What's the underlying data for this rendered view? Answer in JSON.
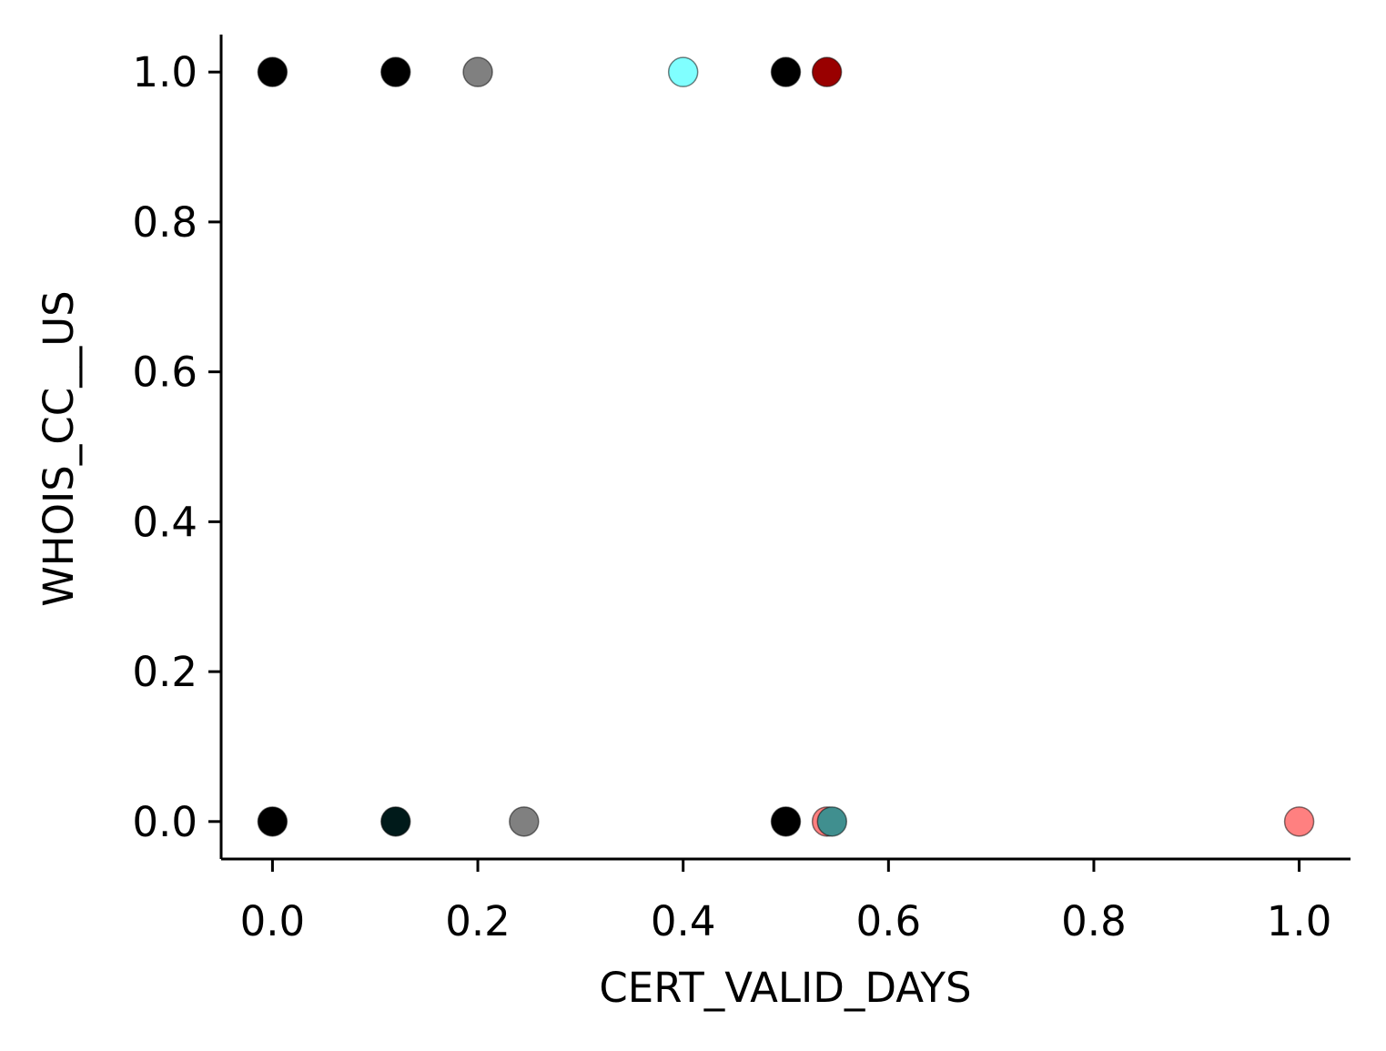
{
  "chart_data": {
    "type": "scatter",
    "title": "",
    "xlabel": "CERT_VALID_DAYS",
    "ylabel": "WHOIS_CC__US",
    "xlim": [
      -0.05,
      1.05
    ],
    "ylim": [
      -0.05,
      1.05
    ],
    "x_ticks": [
      0.0,
      0.2,
      0.4,
      0.6,
      0.8,
      1.0
    ],
    "y_ticks": [
      0.0,
      0.2,
      0.4,
      0.6,
      0.8,
      1.0
    ],
    "x_tick_labels": [
      "0.0",
      "0.2",
      "0.4",
      "0.6",
      "0.8",
      "1.0"
    ],
    "y_tick_labels": [
      "0.0",
      "0.2",
      "0.4",
      "0.6",
      "0.8",
      "1.0"
    ],
    "grid": false,
    "legend": "none",
    "points": [
      {
        "x": 0.0,
        "y": 1.0,
        "color": "#000000"
      },
      {
        "x": 0.12,
        "y": 1.0,
        "color": "#000000"
      },
      {
        "x": 0.2,
        "y": 1.0,
        "color": "#808080"
      },
      {
        "x": 0.4,
        "y": 1.0,
        "color": "#80ffff"
      },
      {
        "x": 0.5,
        "y": 1.0,
        "color": "#000000"
      },
      {
        "x": 0.54,
        "y": 1.0,
        "color": "#990000"
      },
      {
        "x": 0.0,
        "y": 0.0,
        "color": "#000000"
      },
      {
        "x": 0.12,
        "y": 0.0,
        "color": "#001a1a"
      },
      {
        "x": 0.245,
        "y": 0.0,
        "color": "#808080"
      },
      {
        "x": 0.5,
        "y": 0.0,
        "color": "#000000"
      },
      {
        "x": 0.54,
        "y": 0.0,
        "color": "#ff8080"
      },
      {
        "x": 0.545,
        "y": 0.0,
        "color": "#408f8f"
      },
      {
        "x": 1.0,
        "y": 0.0,
        "color": "#ff8080"
      }
    ]
  }
}
